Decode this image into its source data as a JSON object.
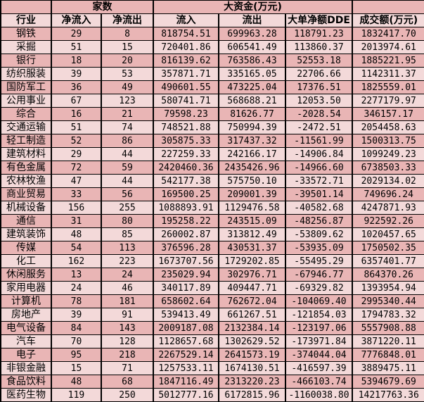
{
  "colors": {
    "row_dark": "#e9b5b5",
    "row_light": "#f3d9d9",
    "border": "#000000",
    "text": "#000000"
  },
  "table": {
    "header": {
      "top_left": "",
      "group_count": "家数",
      "group_big_funds": "大资金(万元)",
      "top_right": "",
      "columns": [
        "行业",
        "净流入",
        "净流出",
        "流入",
        "流出",
        "大单净额DDE",
        "成交额(万元)"
      ]
    },
    "rows": [
      [
        "钢铁",
        "29",
        "8",
        "818754.51",
        "699963.28",
        "118791.23",
        "1832417.70"
      ],
      [
        "采掘",
        "51",
        "15",
        "720401.86",
        "606541.49",
        "113860.37",
        "2013974.61"
      ],
      [
        "银行",
        "18",
        "20",
        "816139.62",
        "763586.43",
        "52553.18",
        "1885221.95"
      ],
      [
        "纺织服装",
        "39",
        "53",
        "357871.71",
        "335165.05",
        "22706.66",
        "1142311.37"
      ],
      [
        "国防军工",
        "36",
        "49",
        "490601.55",
        "473225.04",
        "17376.51",
        "1825559.01"
      ],
      [
        "公用事业",
        "67",
        "123",
        "580741.71",
        "568688.21",
        "12053.50",
        "2277179.97"
      ],
      [
        "综合",
        "16",
        "21",
        "79598.23",
        "81626.77",
        "-2028.54",
        "346157.17"
      ],
      [
        "交通运输",
        "51",
        "74",
        "748521.88",
        "750994.39",
        "-2472.51",
        "2054458.63"
      ],
      [
        "轻工制造",
        "52",
        "86",
        "305875.33",
        "317437.32",
        "-11561.99",
        "1500313.75"
      ],
      [
        "建筑材料",
        "29",
        "44",
        "227259.33",
        "242166.17",
        "-14906.84",
        "1099249.23"
      ],
      [
        "有色金属",
        "72",
        "59",
        "2420460.36",
        "2435426.96",
        "-14966.60",
        "6738503.33"
      ],
      [
        "农林牧渔",
        "47",
        "44",
        "542177.38",
        "575750.10",
        "-33572.71",
        "2029134.02"
      ],
      [
        "商业贸易",
        "33",
        "56",
        "169500.25",
        "209001.39",
        "-39501.14",
        "749696.24"
      ],
      [
        "机械设备",
        "156",
        "255",
        "1088893.91",
        "1129476.58",
        "-40582.68",
        "4247871.93"
      ],
      [
        "通信",
        "31",
        "80",
        "195258.22",
        "243515.09",
        "-48256.87",
        "922592.26"
      ],
      [
        "建筑装饰",
        "48",
        "85",
        "260002.87",
        "313812.49",
        "-53809.62",
        "1020457.65"
      ],
      [
        "传媒",
        "54",
        "113",
        "376596.28",
        "430531.37",
        "-53935.09",
        "1750502.35"
      ],
      [
        "化工",
        "162",
        "223",
        "1673707.56",
        "1729202.85",
        "-55495.29",
        "6357401.77"
      ],
      [
        "休闲服务",
        "13",
        "24",
        "235029.94",
        "302976.71",
        "-67946.77",
        "864370.26"
      ],
      [
        "家用电器",
        "24",
        "46",
        "340117.89",
        "409447.71",
        "-69329.82",
        "1393954.94"
      ],
      [
        "计算机",
        "78",
        "181",
        "658602.64",
        "762672.04",
        "-104069.40",
        "2995340.44"
      ],
      [
        "房地产",
        "39",
        "91",
        "539413.49",
        "661267.51",
        "-121854.03",
        "1794783.32"
      ],
      [
        "电气设备",
        "84",
        "143",
        "2009187.08",
        "2132384.14",
        "-123197.06",
        "5557908.88"
      ],
      [
        "汽车",
        "70",
        "128",
        "1128657.68",
        "1302629.52",
        "-173971.84",
        "3871220.11"
      ],
      [
        "电子",
        "95",
        "218",
        "2267529.14",
        "2641573.19",
        "-374044.04",
        "7776848.01"
      ],
      [
        "非银金融",
        "15",
        "71",
        "1257533.11",
        "1674130.51",
        "-416597.39",
        "3889475.11"
      ],
      [
        "食品饮料",
        "48",
        "68",
        "1847116.49",
        "2313220.23",
        "-466103.74",
        "5394679.69"
      ],
      [
        "医药生物",
        "119",
        "250",
        "5012777.16",
        "6172815.96",
        "-1160038.80",
        "14217763.36"
      ]
    ]
  }
}
